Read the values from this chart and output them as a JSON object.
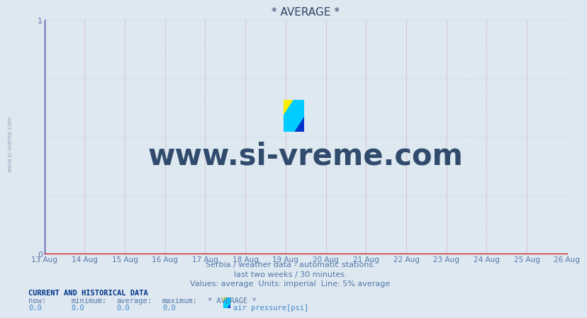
{
  "title": "* AVERAGE *",
  "bg_color": "#dde8f0",
  "plot_bg_color": "#dde8f0",
  "left_spine_color": "#4444aa",
  "bottom_spine_color": "#cc2222",
  "title_color": "#334466",
  "label_color": "#5577aa",
  "watermark_color": "#223366",
  "subtitle1": "Serbia / weather data - automatic stations.",
  "subtitle2": "last two weeks / 30 minutes.",
  "subtitle3": "Values: average  Units: imperial  Line: 5% average",
  "xticklabels": [
    "13 Aug",
    "14 Aug",
    "15 Aug",
    "16 Aug",
    "17 Aug",
    "18 Aug",
    "19 Aug",
    "20 Aug",
    "21 Aug",
    "22 Aug",
    "23 Aug",
    "24 Aug",
    "25 Aug",
    "26 Aug"
  ],
  "ylim": [
    0,
    1
  ],
  "yticks": [
    0,
    1
  ],
  "legend_label": "CURRENT AND HISTORICAL DATA",
  "row_headers": [
    "now:",
    "minimum:",
    "average:",
    "maximum:",
    "* AVERAGE *"
  ],
  "row_values": [
    "0.0",
    "0.0",
    "0.0",
    "0.0"
  ],
  "series_label": "air pressure[psi]",
  "vgrid_color": "#cc4444",
  "hgrid_color": "#aabbcc"
}
